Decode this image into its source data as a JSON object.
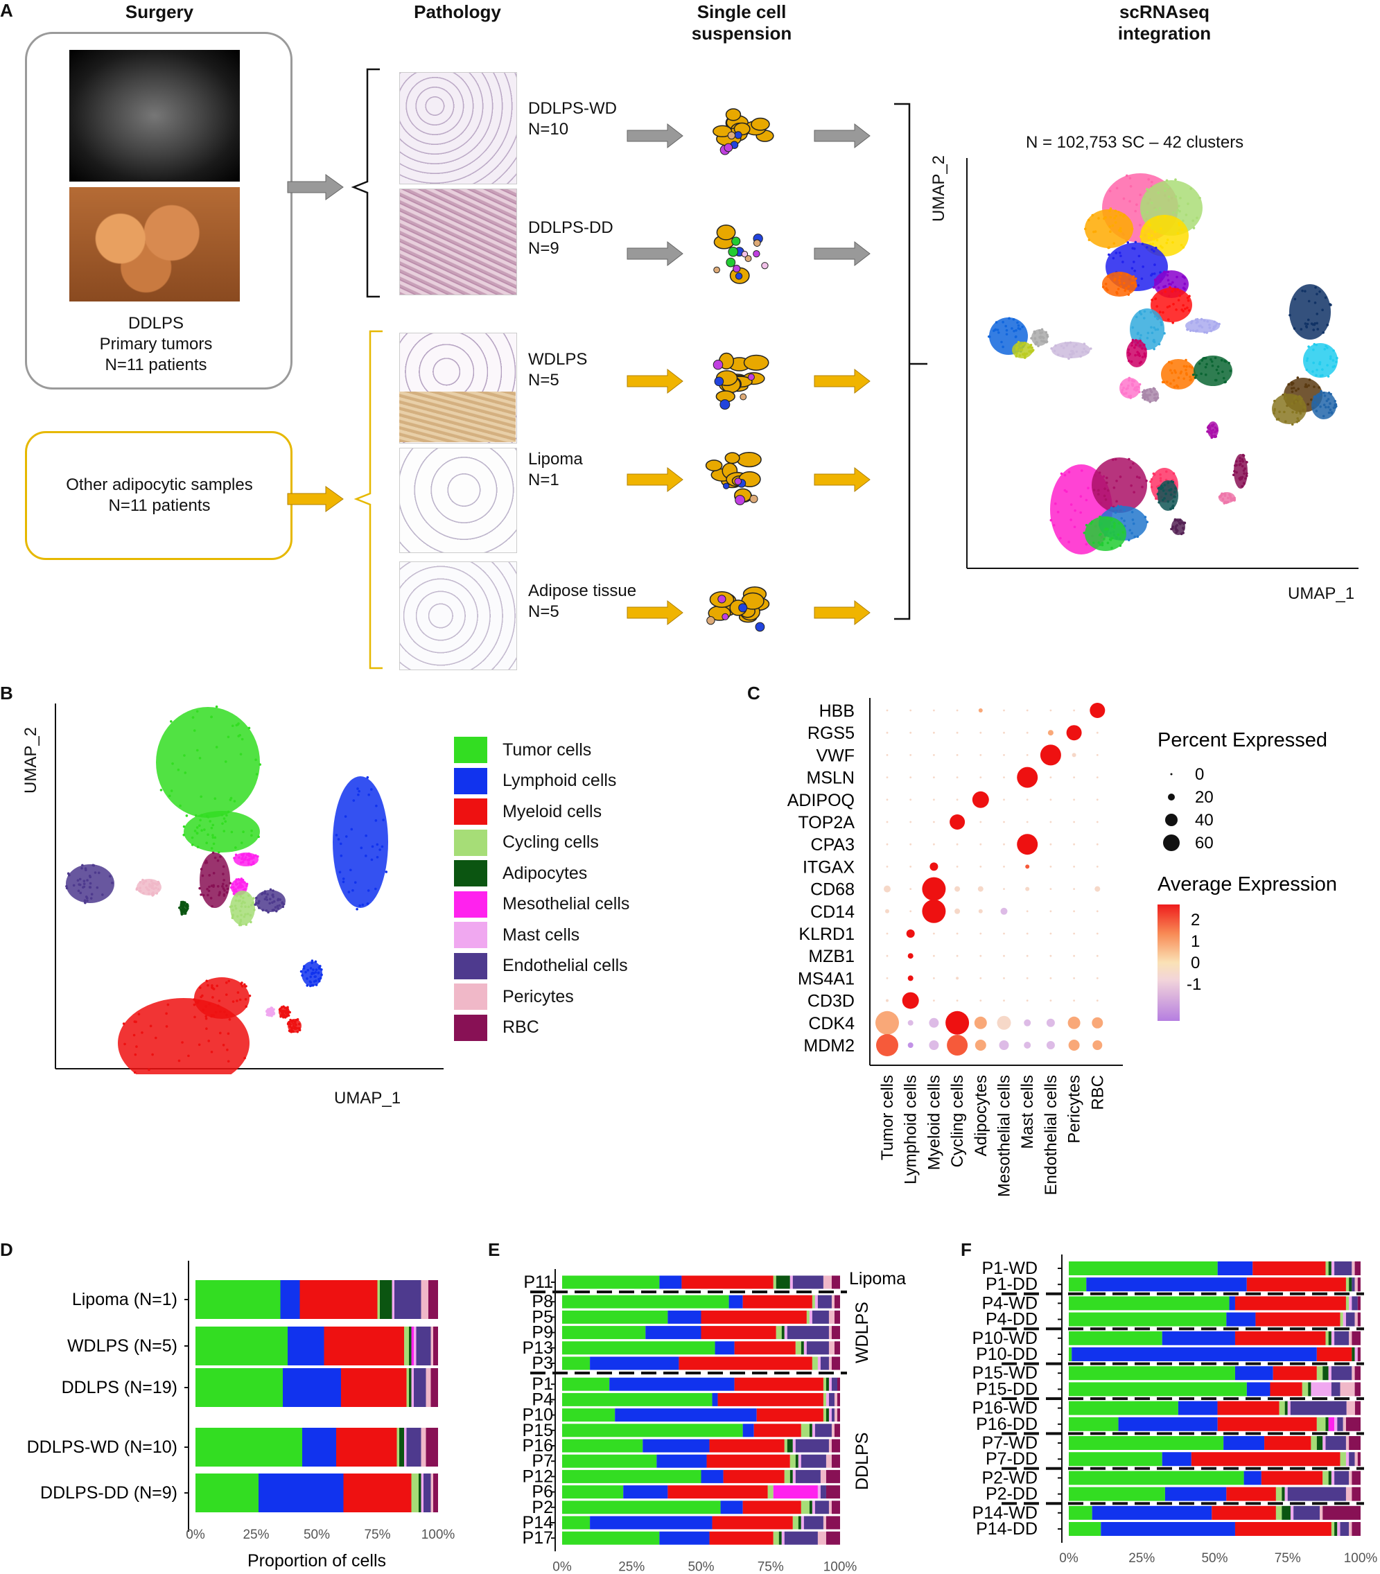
{
  "panel_a": {
    "letter": "A",
    "headers": {
      "surgery": "Surgery",
      "pathology": "Pathology",
      "single_cell_line1": "Single cell",
      "single_cell_line2": "suspension",
      "integration_line1": "scRNAseq",
      "integration_line2": "integration"
    },
    "surgery_box": {
      "line1": "DDLPS",
      "line2": "Primary tumors",
      "line3": "N=11 patients"
    },
    "other_box": {
      "line1": "Other adipocytic samples",
      "line2": "N=11 patients"
    },
    "samples": [
      {
        "name": "DDLPS-WD",
        "n": "N=10"
      },
      {
        "name": "DDLPS-DD",
        "n": "N=9"
      },
      {
        "name": "WDLPS",
        "n": "N=5"
      },
      {
        "name": "Lipoma",
        "n": "N=1"
      },
      {
        "name": "Adipose tissue",
        "n": "N=5"
      }
    ],
    "umap_title": "N = 102,753 SC – 42 clusters",
    "umap_x": "UMAP_1",
    "umap_y": "UMAP_2"
  },
  "panel_b": {
    "letter": "B",
    "umap_x": "UMAP_1",
    "umap_y": "UMAP_2",
    "legend": [
      {
        "label": "Tumor cells",
        "color": "#33dd22"
      },
      {
        "label": "Lymphoid cells",
        "color": "#1133ee"
      },
      {
        "label": "Myeloid cells",
        "color": "#ee1111"
      },
      {
        "label": "Cycling cells",
        "color": "#a6dd77"
      },
      {
        "label": "Adipocytes",
        "color": "#0b5511"
      },
      {
        "label": "Mesothelial cells",
        "color": "#ff22ee"
      },
      {
        "label": "Mast cells",
        "color": "#f0a8f0"
      },
      {
        "label": "Endothelial cells",
        "color": "#4e3a8e"
      },
      {
        "label": "Pericytes",
        "color": "#f0b8c8"
      },
      {
        "label": "RBC",
        "color": "#881155"
      }
    ]
  },
  "panel_c": {
    "letter": "C",
    "genes": [
      "HBB",
      "RGS5",
      "VWF",
      "MSLN",
      "ADIPOQ",
      "TOP2A",
      "CPA3",
      "ITGAX",
      "CD68",
      "CD14",
      "KLRD1",
      "MZB1",
      "MS4A1",
      "CD3D",
      "CDK4",
      "MDM2"
    ],
    "cell_types": [
      "Tumor cells",
      "Lymphoid cells",
      "Myeloid cells",
      "Cycling cells",
      "Adipocytes",
      "Mesothelial cells",
      "Mast cells",
      "Endothelial cells",
      "Pericytes",
      "RBC"
    ],
    "pct_title": "Percent Expressed",
    "pct_labels": [
      "0",
      "20",
      "40",
      "60"
    ],
    "avg_title": "Average Expression",
    "avg_labels": [
      "2",
      "1",
      "0",
      "-1"
    ]
  },
  "chart_data": [
    {
      "type": "bar",
      "title": "D",
      "xlabel": "Proportion of cells",
      "xticks": [
        "0%",
        "25%",
        "50%",
        "75%",
        "100%"
      ],
      "categories": [
        "Lipoma (N=1)",
        "WDLPS (N=5)",
        "DDLPS (N=19)",
        "DDLPS-WD (N=10)",
        "DDLPS-DD (N=9)"
      ],
      "series_order": [
        "Tumor cells",
        "Lymphoid cells",
        "Myeloid cells",
        "Cycling cells",
        "Adipocytes",
        "Mesothelial cells",
        "Mast cells",
        "Endothelial cells",
        "Pericytes",
        "RBC"
      ],
      "rows": [
        [
          35,
          8,
          32,
          1,
          5,
          0,
          1,
          11,
          3,
          4
        ],
        [
          38,
          15,
          33,
          2,
          1,
          1,
          1,
          6,
          1,
          2
        ],
        [
          36,
          24,
          27,
          1,
          1,
          0,
          1,
          5,
          2,
          3
        ],
        [
          44,
          14,
          25,
          1,
          2,
          0,
          1,
          6,
          2,
          5
        ],
        [
          26,
          35,
          28,
          3,
          1,
          0,
          1,
          3,
          1,
          2
        ]
      ]
    },
    {
      "type": "bar",
      "title": "E",
      "xlabel": "Proportion of cells",
      "xticks": [
        "0%",
        "25%",
        "50%",
        "75%",
        "100%"
      ],
      "group_labels": [
        "Lipoma",
        "WDLPS",
        "DDLPS"
      ],
      "categories": [
        "P11",
        "P8",
        "P5",
        "P9",
        "P13",
        "P3",
        "P1",
        "P4",
        "P10",
        "P15",
        "P16",
        "P7",
        "P12",
        "P6",
        "P2",
        "P14",
        "P17"
      ],
      "rows": [
        [
          35,
          8,
          33,
          1,
          5,
          0,
          1,
          11,
          3,
          3
        ],
        [
          60,
          5,
          25,
          1,
          0,
          0,
          1,
          5,
          1,
          2
        ],
        [
          38,
          12,
          38,
          1,
          0,
          0,
          1,
          6,
          2,
          2
        ],
        [
          30,
          20,
          27,
          2,
          1,
          0,
          1,
          15,
          1,
          3
        ],
        [
          55,
          7,
          22,
          2,
          1,
          0,
          1,
          8,
          2,
          2
        ],
        [
          10,
          32,
          48,
          2,
          0,
          0,
          1,
          3,
          1,
          3
        ],
        [
          17,
          45,
          32,
          1,
          1,
          0,
          1,
          2,
          0,
          1
        ],
        [
          54,
          2,
          38,
          1,
          0,
          0,
          1,
          2,
          1,
          1
        ],
        [
          19,
          51,
          24,
          1,
          1,
          0,
          1,
          1,
          1,
          1
        ],
        [
          65,
          4,
          17,
          3,
          1,
          0,
          1,
          6,
          1,
          2
        ],
        [
          29,
          24,
          27,
          1,
          2,
          0,
          1,
          12,
          1,
          3
        ],
        [
          34,
          18,
          30,
          2,
          1,
          0,
          1,
          9,
          2,
          3
        ],
        [
          50,
          8,
          22,
          2,
          1,
          0,
          1,
          9,
          2,
          5
        ],
        [
          22,
          16,
          36,
          2,
          0,
          16,
          1,
          2,
          0,
          5
        ],
        [
          57,
          8,
          21,
          3,
          1,
          0,
          1,
          5,
          1,
          3
        ],
        [
          10,
          44,
          29,
          2,
          1,
          0,
          1,
          7,
          1,
          5
        ],
        [
          35,
          18,
          23,
          2,
          1,
          0,
          1,
          12,
          3,
          5
        ]
      ]
    },
    {
      "type": "bar",
      "title": "F",
      "xlabel": "Proportion of cells",
      "xticks": [
        "0%",
        "25%",
        "50%",
        "75%",
        "100%"
      ],
      "categories": [
        "P1-WD",
        "P1-DD",
        "P4-WD",
        "P4-DD",
        "P10-WD",
        "P10-DD",
        "P15-WD",
        "P15-DD",
        "P16-WD",
        "P16-DD",
        "P7-WD",
        "P7-DD",
        "P2-WD",
        "P2-DD",
        "P14-WD",
        "P14-DD"
      ],
      "rows": [
        [
          51,
          12,
          25,
          1,
          1,
          0,
          1,
          6,
          1,
          2
        ],
        [
          6,
          55,
          34,
          1,
          1,
          0,
          0,
          1,
          1,
          1
        ],
        [
          55,
          2,
          38,
          1,
          0,
          0,
          1,
          2,
          0,
          1
        ],
        [
          54,
          10,
          29,
          1,
          0,
          0,
          1,
          3,
          1,
          1
        ],
        [
          32,
          25,
          31,
          1,
          1,
          0,
          1,
          5,
          1,
          3
        ],
        [
          1,
          84,
          12,
          0,
          1,
          0,
          1,
          0,
          0,
          1
        ],
        [
          57,
          13,
          15,
          2,
          2,
          0,
          1,
          7,
          1,
          2
        ],
        [
          61,
          8,
          11,
          2,
          1,
          0,
          7,
          3,
          5,
          2
        ],
        [
          39,
          14,
          22,
          2,
          1,
          0,
          1,
          20,
          3,
          2
        ],
        [
          17,
          34,
          34,
          3,
          1,
          2,
          1,
          2,
          1,
          5
        ],
        [
          53,
          14,
          16,
          2,
          2,
          0,
          1,
          7,
          1,
          4
        ],
        [
          32,
          10,
          51,
          2,
          0,
          0,
          1,
          2,
          1,
          1
        ],
        [
          60,
          6,
          21,
          2,
          1,
          0,
          1,
          5,
          1,
          3
        ],
        [
          33,
          21,
          17,
          2,
          1,
          0,
          1,
          20,
          2,
          3
        ],
        [
          8,
          41,
          22,
          2,
          3,
          0,
          1,
          9,
          1,
          13
        ],
        [
          11,
          46,
          33,
          1,
          1,
          0,
          1,
          3,
          1,
          3
        ]
      ]
    }
  ]
}
